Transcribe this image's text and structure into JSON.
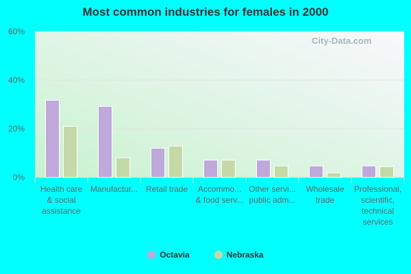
{
  "chart_data": {
    "type": "bar",
    "title": "Most common industries for females in 2000",
    "categories": [
      [
        "Health care",
        "& social",
        "assistance"
      ],
      [
        "Manufactur..."
      ],
      [
        "Retail trade"
      ],
      [
        "Accommo...",
        "& food serv..."
      ],
      [
        "Other servi...",
        "public adm..."
      ],
      [
        "Wholesale",
        "trade"
      ],
      [
        "Professional,",
        "scientific,",
        "technical",
        "services"
      ]
    ],
    "series": [
      {
        "name": "Octavia",
        "color": "#bfa8da",
        "values": [
          31.7,
          29.2,
          12.0,
          7.1,
          7.1,
          4.7,
          4.7
        ]
      },
      {
        "name": "Nebraska",
        "color": "#c5d9a8",
        "values": [
          21.0,
          8.1,
          12.9,
          7.1,
          4.7,
          1.9,
          4.4
        ]
      }
    ],
    "ylim": [
      0,
      60
    ],
    "yticks": [
      "0%",
      "20%",
      "40%",
      "60%"
    ],
    "grid": true,
    "legend": "bottom"
  },
  "watermark": "City-Data.com"
}
